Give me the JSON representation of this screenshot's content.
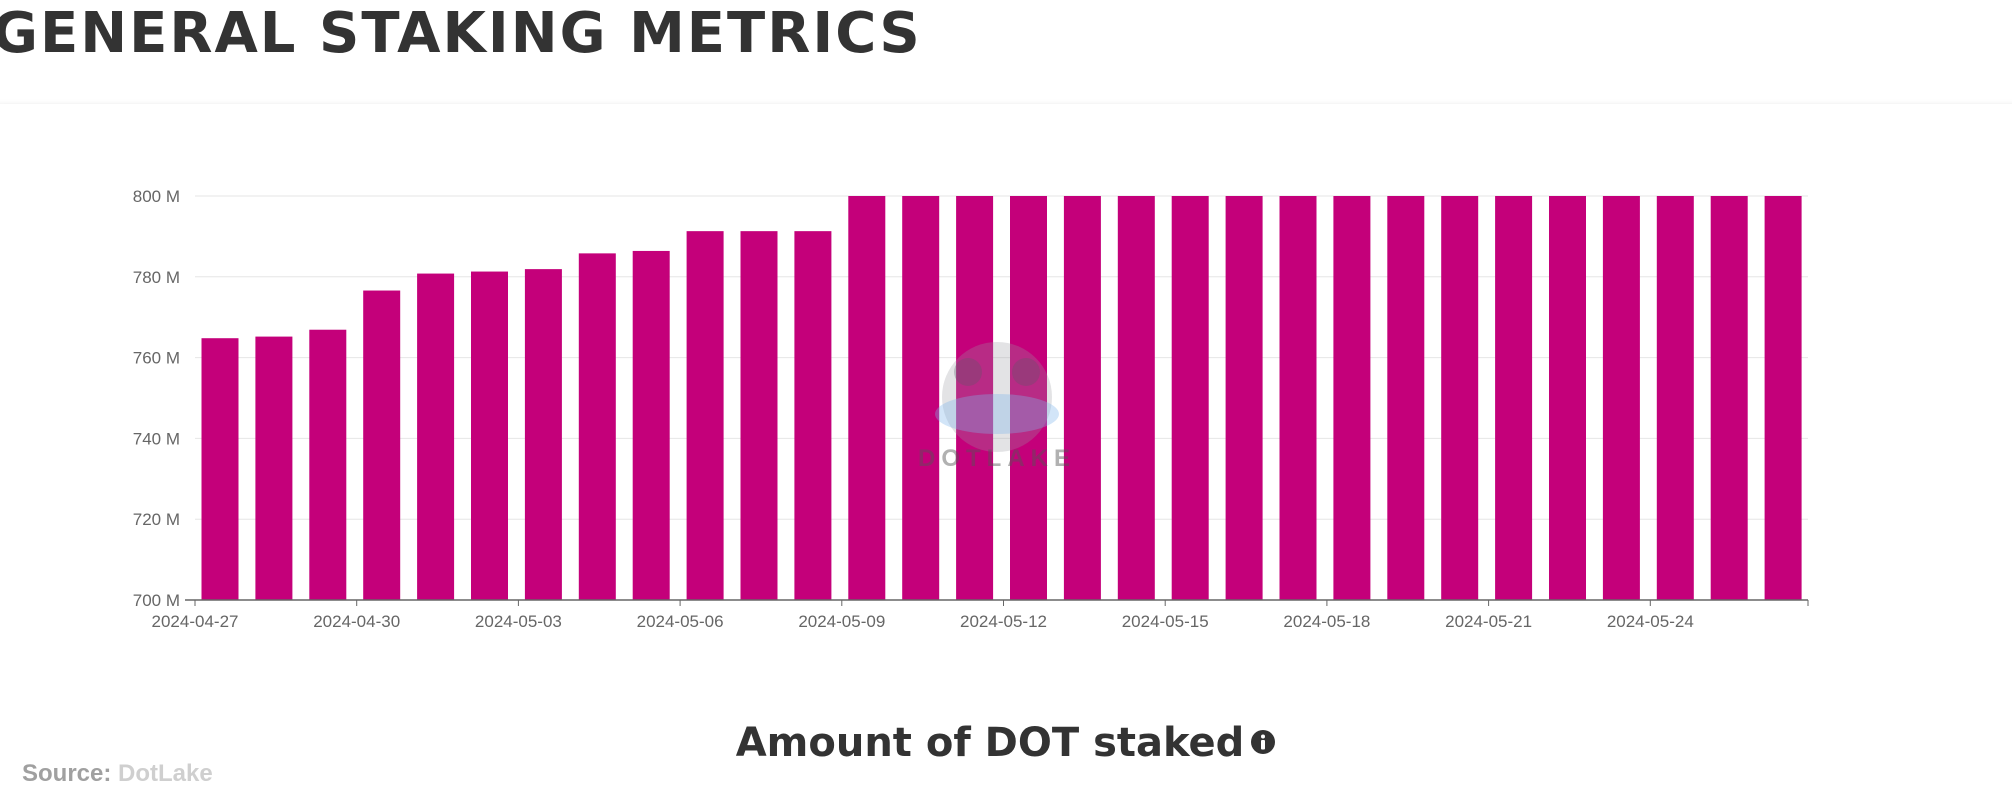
{
  "page": {
    "heading": "GENERAL STAKING METRICS"
  },
  "chart_data": {
    "type": "bar",
    "title": "Amount of DOT staked",
    "xlabel": "",
    "ylabel": "",
    "ylim": [
      700,
      800
    ],
    "y_ticks": [
      700,
      720,
      740,
      760,
      780,
      800
    ],
    "y_tick_labels": [
      "700 M",
      "720 M",
      "740 M",
      "760 M",
      "780 M",
      "800 M"
    ],
    "y_unit": "M DOT",
    "x_tick_labels": [
      "2024-04-27",
      "2024-04-30",
      "2024-05-03",
      "2024-05-06",
      "2024-05-09",
      "2024-05-12",
      "2024-05-15",
      "2024-05-18",
      "2024-05-21",
      "2024-05-24"
    ],
    "categories": [
      "2024-04-27",
      "2024-04-28",
      "2024-04-29",
      "2024-04-30",
      "2024-05-01",
      "2024-05-02",
      "2024-05-03",
      "2024-05-04",
      "2024-05-05",
      "2024-05-06",
      "2024-05-07",
      "2024-05-08",
      "2024-05-09",
      "2024-05-10",
      "2024-05-11",
      "2024-05-12",
      "2024-05-13",
      "2024-05-14",
      "2024-05-15",
      "2024-05-16",
      "2024-05-17",
      "2024-05-18",
      "2024-05-19",
      "2024-05-20",
      "2024-05-21",
      "2024-05-22",
      "2024-05-23",
      "2024-05-24",
      "2024-05-25",
      "2024-05-26"
    ],
    "values": [
      764.8,
      765.2,
      766.9,
      776.6,
      780.8,
      781.3,
      781.9,
      785.8,
      786.4,
      791.3,
      791.3,
      791.3,
      800,
      800,
      800,
      800,
      800,
      800,
      800,
      800,
      800,
      800,
      800,
      800,
      800,
      800,
      800,
      800,
      800,
      800
    ],
    "bar_color": "#c4007a",
    "grid": true,
    "legend": "none"
  },
  "watermark": {
    "icon": "dotlake-logo-icon",
    "text": "DOTLAKE"
  },
  "source": {
    "label": "Source:",
    "name": "DotLake"
  },
  "colors": {
    "bar": "#c4007a",
    "text": "#333333",
    "muted": "#a0a0a0"
  }
}
